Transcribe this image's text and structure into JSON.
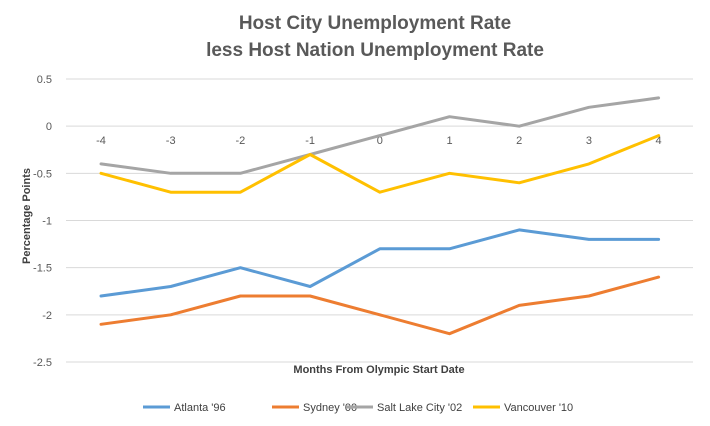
{
  "chart_data": {
    "type": "line",
    "title": [
      "Host City Unemployment Rate",
      "less Host Nation Unemployment Rate"
    ],
    "xlabel": "Months From Olympic Start Date",
    "ylabel": "Percentage Points",
    "categories": [
      "-4",
      "-3",
      "-2",
      "-1",
      "0",
      "1",
      "2",
      "3",
      "4"
    ],
    "x": [
      -4,
      -3,
      -2,
      -1,
      0,
      1,
      2,
      3,
      4
    ],
    "ylim": [
      -2.5,
      0.5
    ],
    "yticks": [
      0.5,
      0,
      -0.5,
      -1,
      -1.5,
      -2,
      -2.5
    ],
    "ytick_labels": [
      "0.5",
      "0",
      "-0.5",
      "-1",
      "-1.5",
      "-2",
      "-2.5"
    ],
    "grid": true,
    "legend_position": "bottom",
    "series": [
      {
        "name": "Atlanta '96",
        "color": "#5b9bd5",
        "values": [
          -1.8,
          -1.7,
          -1.5,
          -1.7,
          -1.3,
          -1.3,
          -1.1,
          -1.2,
          -1.2
        ]
      },
      {
        "name": "Sydney '00",
        "color": "#ed7d31",
        "values": [
          -2.1,
          -2.0,
          -1.8,
          -1.8,
          -2.0,
          -2.2,
          -1.9,
          -1.8,
          -1.6
        ]
      },
      {
        "name": "Salt Lake City '02",
        "color": "#a5a5a5",
        "values": [
          -0.4,
          -0.5,
          -0.5,
          -0.3,
          -0.1,
          0.1,
          0.0,
          0.2,
          0.3
        ]
      },
      {
        "name": "Vancouver '10",
        "color": "#ffc000",
        "values": [
          -0.5,
          -0.7,
          -0.7,
          -0.3,
          -0.7,
          -0.5,
          -0.6,
          -0.4,
          -0.1
        ]
      }
    ]
  }
}
